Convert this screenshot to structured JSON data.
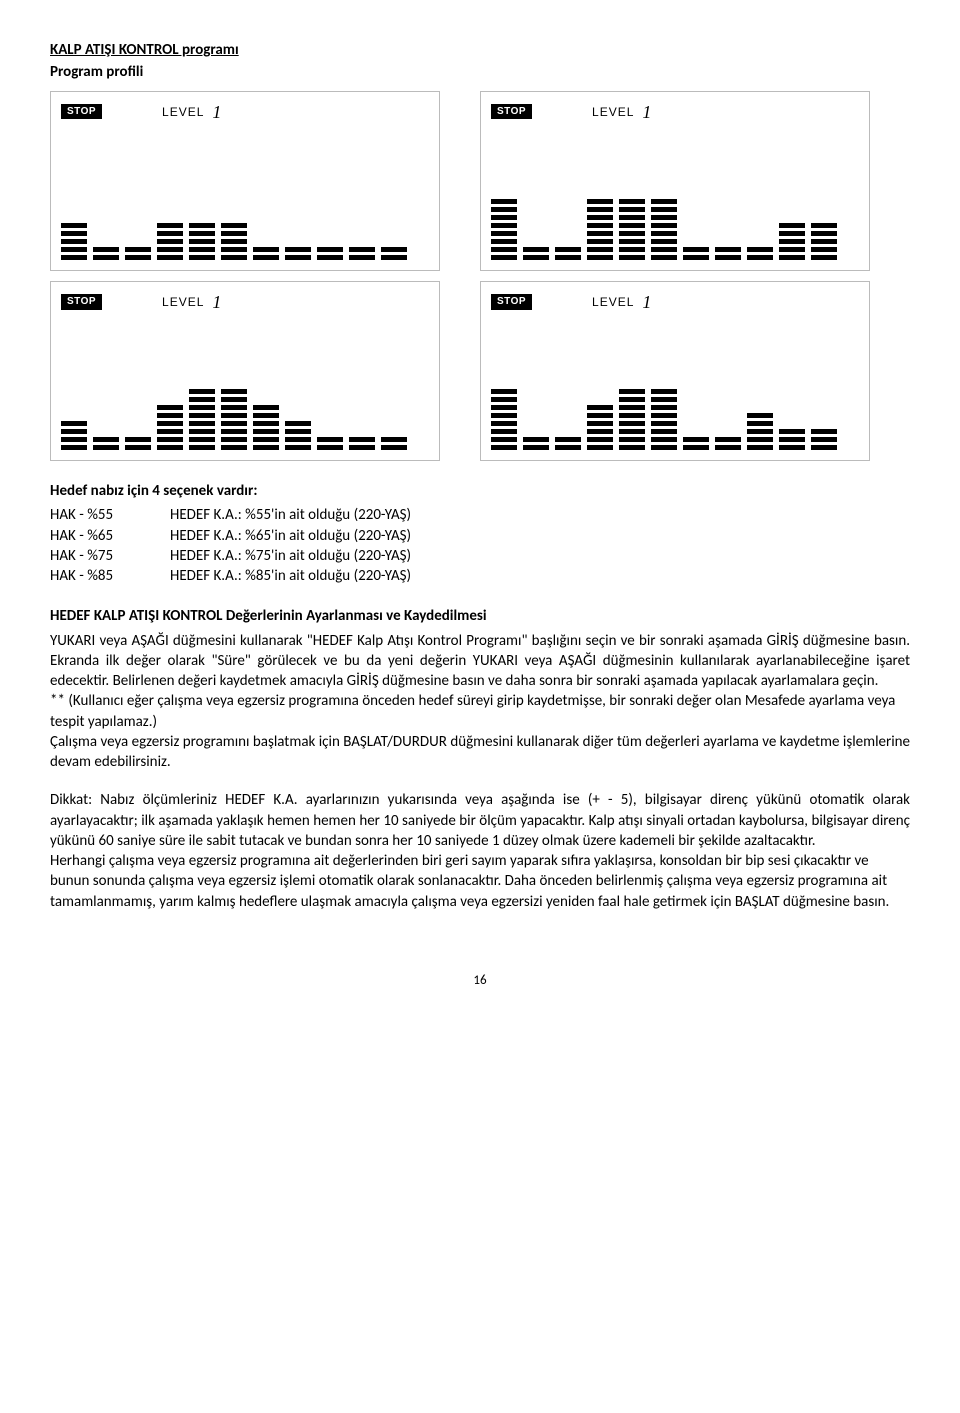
{
  "title": "KALP ATIŞI KONTROL programı",
  "subtitle": "Program profili",
  "panels": {
    "stop_label": "STOP",
    "level_label": "LEVEL",
    "level_num": "1",
    "profiles": [
      {
        "columns": [
          5,
          2,
          2,
          5,
          5,
          5,
          2,
          2,
          2,
          2,
          2
        ]
      },
      {
        "columns": [
          8,
          2,
          2,
          8,
          8,
          8,
          2,
          2,
          2,
          5,
          5
        ]
      },
      {
        "columns": [
          4,
          2,
          2,
          6,
          8,
          8,
          6,
          4,
          2,
          2,
          2
        ]
      },
      {
        "columns": [
          8,
          2,
          2,
          6,
          8,
          8,
          2,
          2,
          5,
          3,
          3
        ]
      }
    ]
  },
  "options_heading": "Hedef nabız için 4 seçenek vardır:",
  "hak_rows": [
    {
      "left": "HAK - %55",
      "right": "HEDEF K.A.: %55'in ait olduğu (220-YAŞ)"
    },
    {
      "left": "HAK - %65",
      "right": "HEDEF K.A.: %65'in ait olduğu   (220-YAŞ)"
    },
    {
      "left": "HAK - %75",
      "right": "HEDEF K.A.: %75'in ait olduğu (220-YAŞ)"
    },
    {
      "left": "HAK - %85",
      "right": "HEDEF K.A.: %85'in ait olduğu   (220-YAŞ)"
    }
  ],
  "para1_heading": "HEDEF KALP ATIŞI KONTROL Değerlerinin Ayarlanması ve Kaydedilmesi",
  "para1": "YUKARI veya AŞAĞI düğmesini kullanarak \"HEDEF Kalp Atışı Kontrol Programı\" başlığını seçin ve bir sonraki aşamada GİRİŞ düğmesine basın. Ekranda ilk değer olarak \"Süre\" görülecek ve bu da yeni değerin YUKARI veya AŞAĞI düğmesinin kullanılarak ayarlanabileceğine işaret edecektir.    Belirlenen değeri kaydetmek amacıyla GİRİŞ düğmesine basın ve daha sonra bir sonraki aşamada yapılacak ayarlamalara geçin.",
  "para2": "** (Kullanıcı eğer çalışma veya egzersiz programına önceden hedef süreyi girip kaydetmişse, bir sonraki değer olan Mesafede ayarlama veya tespit yapılamaz.)",
  "para3": "Çalışma veya egzersiz programını başlatmak için BAŞLAT/DURDUR düğmesini kullanarak diğer tüm değerleri ayarlama ve kaydetme işlemlerine devam edebilirsiniz.",
  "para4": "Dikkat: Nabız ölçümleriniz HEDEF K.A. ayarlarınızın yukarısında veya aşağında ise (+ - 5), bilgisayar direnç yükünü otomatik olarak ayarlayacaktır; ilk aşamada yaklaşık hemen hemen her 10 saniyede bir ölçüm yapacaktır. Kalp atışı sinyali ortadan kaybolursa, bilgisayar direnç yükünü 60 saniye süre ile sabit tutacak ve bundan sonra her 10 saniyede 1 düzey olmak üzere kademeli bir şekilde azaltacaktır.",
  "para5": "Herhangi çalışma veya egzersiz programına ait değerlerinden biri geri sayım yaparak sıfıra yaklaşırsa, konsoldan bir bip sesi çıkacaktır ve bunun sonunda çalışma veya egzersiz işlemi otomatik olarak sonlanacaktır. Daha önceden belirlenmiş çalışma veya egzersiz programına ait tamamlanmamış, yarım kalmış hedeflere ulaşmak amacıyla çalışma veya egzersizi yeniden    faal hale getirmek için BAŞLAT düğmesine basın.",
  "page_num": "16"
}
